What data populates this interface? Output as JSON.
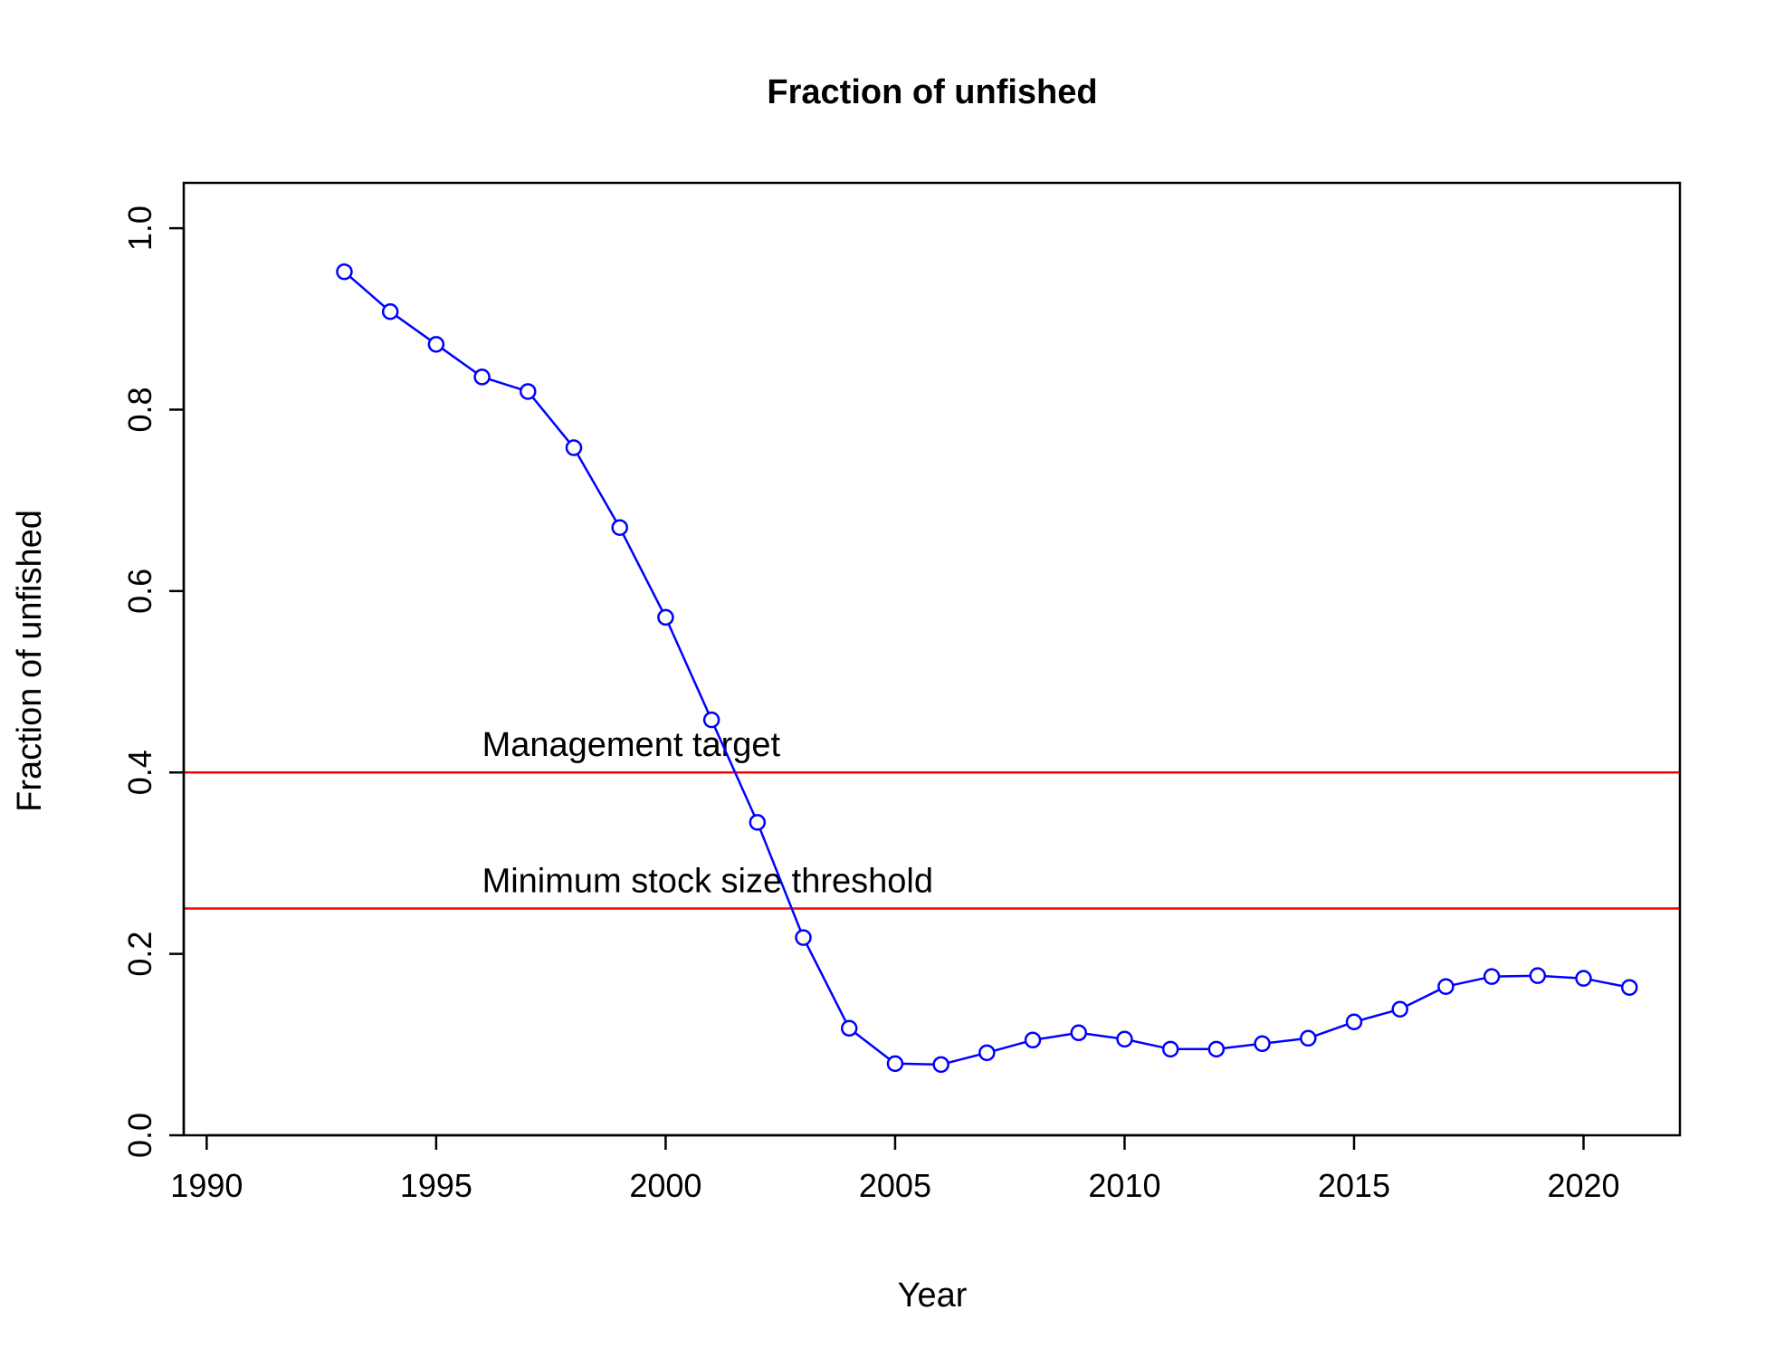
{
  "chart_data": {
    "type": "line",
    "title": "Fraction of unfished",
    "xlabel": "Year",
    "ylabel": "Fraction of unfished",
    "xlim": [
      1989.5,
      2022.1
    ],
    "ylim": [
      0.0,
      1.05
    ],
    "xticks": [
      1990,
      1995,
      2000,
      2005,
      2010,
      2015,
      2020
    ],
    "yticks": [
      0.0,
      0.2,
      0.4,
      0.6,
      0.8,
      1.0
    ],
    "xtick_labels": [
      "1990",
      "1995",
      "2000",
      "2005",
      "2010",
      "2015",
      "2020"
    ],
    "ytick_labels": [
      "0.0",
      "0.2",
      "0.4",
      "0.6",
      "0.8",
      "1.0"
    ],
    "grid": false,
    "series_color": "#0000ff",
    "reference_color": "#ff0000",
    "x": [
      1993,
      1994,
      1995,
      1996,
      1997,
      1998,
      1999,
      2000,
      2001,
      2002,
      2003,
      2004,
      2005,
      2006,
      2007,
      2008,
      2009,
      2010,
      2011,
      2012,
      2013,
      2014,
      2015,
      2016,
      2017,
      2018,
      2019,
      2020,
      2021
    ],
    "values": [
      0.952,
      0.908,
      0.872,
      0.836,
      0.82,
      0.758,
      0.67,
      0.571,
      0.458,
      0.345,
      0.218,
      0.118,
      0.079,
      0.078,
      0.091,
      0.105,
      0.113,
      0.106,
      0.095,
      0.095,
      0.101,
      0.107,
      0.125,
      0.139,
      0.164,
      0.175,
      0.176,
      0.173,
      0.163
    ],
    "reference_lines": [
      {
        "label": "Management target",
        "y": 0.4
      },
      {
        "label": "Minimum stock size threshold",
        "y": 0.25
      }
    ]
  }
}
